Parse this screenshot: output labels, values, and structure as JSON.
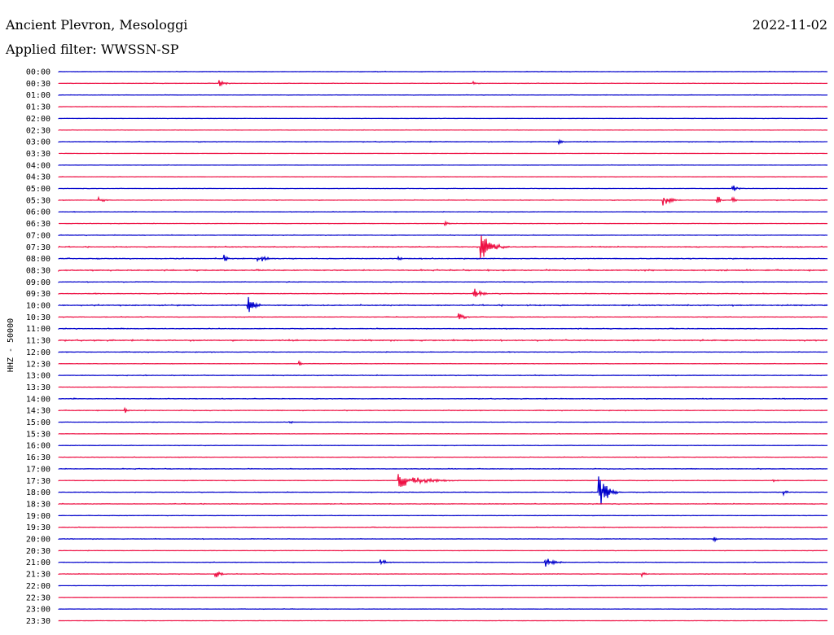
{
  "header": {
    "station": "Ancient Plevron, Mesologgi",
    "filter": "Applied filter: WWSSN-SP",
    "date": "2022-11-02"
  },
  "colors": {
    "even_rows": "#0000cc",
    "odd_rows": "#ee1144",
    "text": "#000000",
    "background": "#ffffff"
  },
  "chart_data": {
    "type": "line",
    "title": "",
    "ylabel": "HHZ - 50000",
    "xlabel": "",
    "grid": false,
    "rows": [
      "00:00",
      "00:30",
      "01:00",
      "01:30",
      "02:00",
      "02:30",
      "03:00",
      "03:30",
      "04:00",
      "04:30",
      "05:00",
      "05:30",
      "06:00",
      "06:30",
      "07:00",
      "07:30",
      "08:00",
      "08:30",
      "09:00",
      "09:30",
      "10:00",
      "10:30",
      "11:00",
      "11:30",
      "12:00",
      "12:30",
      "13:00",
      "13:30",
      "14:00",
      "14:30",
      "15:00",
      "15:30",
      "16:00",
      "16:30",
      "17:00",
      "17:30",
      "18:00",
      "18:30",
      "19:00",
      "19:30",
      "20:00",
      "20:30",
      "21:00",
      "21:30",
      "22:00",
      "22:30",
      "23:00",
      "23:30"
    ],
    "row_minutes": 30,
    "noise_levels": [
      0.25,
      0.2,
      0.2,
      0.25,
      0.15,
      0.2,
      0.3,
      0.1,
      0.2,
      0.2,
      0.2,
      0.3,
      0.25,
      0.2,
      0.3,
      0.4,
      0.4,
      0.5,
      0.3,
      0.35,
      0.5,
      0.3,
      0.35,
      0.5,
      0.3,
      0.2,
      0.3,
      0.15,
      0.3,
      0.3,
      0.2,
      0.2,
      0.2,
      0.25,
      0.3,
      0.25,
      0.3,
      0.3,
      0.2,
      0.25,
      0.25,
      0.2,
      0.25,
      0.25,
      0.15,
      0.15,
      0.2,
      0.15
    ],
    "events": [
      {
        "row": 1,
        "minute": 6.3,
        "amplitude": 4,
        "duration_min": 0.6
      },
      {
        "row": 1,
        "minute": 16.2,
        "amplitude": 2,
        "duration_min": 0.5
      },
      {
        "row": 6,
        "minute": 19.5,
        "amplitude": 3,
        "duration_min": 0.5
      },
      {
        "row": 11,
        "minute": 1.6,
        "amplitude": 5,
        "duration_min": 0.5
      },
      {
        "row": 11,
        "minute": 23.6,
        "amplitude": 8,
        "duration_min": 0.7
      },
      {
        "row": 11,
        "minute": 25.7,
        "amplitude": 9,
        "duration_min": 0.3
      },
      {
        "row": 11,
        "minute": 26.3,
        "amplitude": 6,
        "duration_min": 0.3
      },
      {
        "row": 10,
        "minute": 26.3,
        "amplitude": 5,
        "duration_min": 0.5
      },
      {
        "row": 13,
        "minute": 15.1,
        "amplitude": 2,
        "duration_min": 0.4
      },
      {
        "row": 15,
        "minute": 16.5,
        "amplitude": 18,
        "duration_min": 1.1
      },
      {
        "row": 16,
        "minute": 6.5,
        "amplitude": 7,
        "duration_min": 0.2
      },
      {
        "row": 16,
        "minute": 7.8,
        "amplitude": 6,
        "duration_min": 0.8
      },
      {
        "row": 16,
        "minute": 13.3,
        "amplitude": 5,
        "duration_min": 0.2
      },
      {
        "row": 19,
        "minute": 16.2,
        "amplitude": 10,
        "duration_min": 0.6
      },
      {
        "row": 20,
        "minute": 7.4,
        "amplitude": 14,
        "duration_min": 0.6
      },
      {
        "row": 21,
        "minute": 15.6,
        "amplitude": 8,
        "duration_min": 0.5
      },
      {
        "row": 25,
        "minute": 9.4,
        "amplitude": 3,
        "duration_min": 0.2
      },
      {
        "row": 28,
        "minute": 0.6,
        "amplitude": 2,
        "duration_min": 0.2
      },
      {
        "row": 29,
        "minute": 2.6,
        "amplitude": 3,
        "duration_min": 0.3
      },
      {
        "row": 30,
        "minute": 9.0,
        "amplitude": 3,
        "duration_min": 0.3
      },
      {
        "row": 35,
        "minute": 13.3,
        "amplitude": 9,
        "duration_min": 2.4
      },
      {
        "row": 35,
        "minute": 27.9,
        "amplitude": 2,
        "duration_min": 0.4
      },
      {
        "row": 36,
        "minute": 21.1,
        "amplitude": 24,
        "duration_min": 0.8
      },
      {
        "row": 36,
        "minute": 28.3,
        "amplitude": 5,
        "duration_min": 0.4
      },
      {
        "row": 40,
        "minute": 25.6,
        "amplitude": 3,
        "duration_min": 0.3
      },
      {
        "row": 42,
        "minute": 12.6,
        "amplitude": 4,
        "duration_min": 0.6
      },
      {
        "row": 42,
        "minute": 19.0,
        "amplitude": 6,
        "duration_min": 0.9
      },
      {
        "row": 43,
        "minute": 6.1,
        "amplitude": 6,
        "duration_min": 0.5
      },
      {
        "row": 43,
        "minute": 22.8,
        "amplitude": 3,
        "duration_min": 0.3
      }
    ]
  }
}
